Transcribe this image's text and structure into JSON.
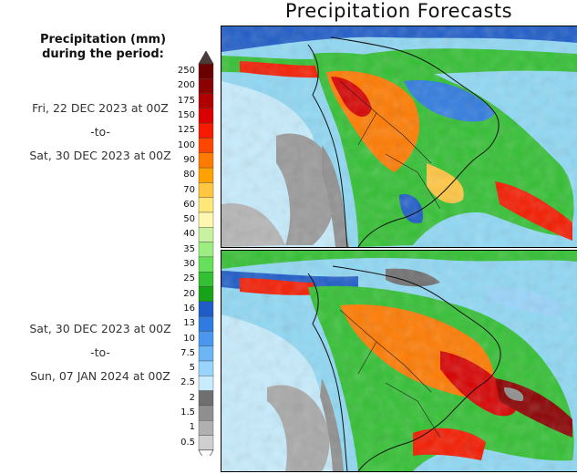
{
  "title": "Precipitation Forecasts",
  "legend": {
    "heading_line1": "Precipitation (mm)",
    "heading_line2": "during the period:",
    "levels": [
      "250",
      "200",
      "175",
      "150",
      "125",
      "100",
      "90",
      "80",
      "70",
      "60",
      "50",
      "40",
      "35",
      "30",
      "25",
      "20",
      "16",
      "13",
      "10",
      "7.5",
      "5",
      "2.5",
      "2",
      "1.5",
      "1",
      "0.5"
    ],
    "colors": [
      "#6a0000",
      "#8b0000",
      "#b00000",
      "#d80000",
      "#f51a00",
      "#ff4600",
      "#ff7a00",
      "#ffa200",
      "#ffc640",
      "#ffe878",
      "#fff6b0",
      "#c8f2a0",
      "#9cee80",
      "#66e05a",
      "#33c033",
      "#17a317",
      "#1e5cc8",
      "#2f7be0",
      "#4a98ee",
      "#6db6f5",
      "#98d4fb",
      "#c6ecfd",
      "#6f6f6f",
      "#8f8f8f",
      "#b0b0b0",
      "#cfcfcf"
    ],
    "bottom_color": "#ffffff",
    "top_color": "#4d3b3b"
  },
  "periods": [
    {
      "start": "Fri, 22 DEC 2023 at 00Z",
      "sep": "-to-",
      "end": "Sat, 30 DEC 2023 at 00Z"
    },
    {
      "start": "Sat, 30 DEC 2023 at 00Z",
      "sep": "-to-",
      "end": "Sun, 07 JAN 2024 at 00Z"
    }
  ]
}
